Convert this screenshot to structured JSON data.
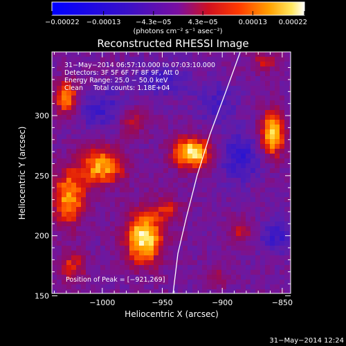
{
  "chart_data": {
    "type": "heatmap",
    "title": "Reconstructed RHESSI Image",
    "xlabel": "Heliocentric X (arcsec)",
    "ylabel": "Heliocentric Y (arcsec)",
    "xlim": [
      -1042,
      -843
    ],
    "ylim": [
      152,
      353
    ],
    "xticks": [
      -1000,
      -950,
      -900,
      -850
    ],
    "xtick_labels": [
      "−1000",
      "−950",
      "−900",
      "−850"
    ],
    "yticks": [
      150,
      200,
      250,
      300
    ],
    "ytick_labels": [
      "150",
      "200",
      "250",
      "300"
    ],
    "colorbar": {
      "range": [
        -0.00022,
        0.00022
      ],
      "ticks": [
        -0.00022,
        -0.00013,
        -4.3e-05,
        4.3e-05,
        0.00013,
        0.00022
      ],
      "tick_labels": [
        "−0.00022",
        "−0.00013",
        "−4.3e−05",
        "4.3e−05",
        "0.00013",
        "0.00022"
      ],
      "label": "(photons cm⁻² s⁻¹ asec⁻²)"
    },
    "info_lines": [
      "31−May−2014 06:57:10.000 to 07:03:10.000",
      "Detectors: 3F 5F 6F 7F 8F 9F, Att 0",
      "Energy Range: 25.0 − 50.0 keV",
      "Clean     Total counts: 1.18E+04"
    ],
    "peak_text": "Position of Peak = [−921,269]",
    "peak": [
      -921,
      269
    ],
    "sources": [
      {
        "x": -965,
        "y": 198,
        "sx": 11,
        "sy": 15,
        "amp": 1.0
      },
      {
        "x": -925,
        "y": 269,
        "sx": 11,
        "sy": 9,
        "amp": 1.0
      },
      {
        "x": -1000,
        "y": 258,
        "sx": 13,
        "sy": 11,
        "amp": 0.8
      },
      {
        "x": -1028,
        "y": 232,
        "sx": 10,
        "sy": 16,
        "amp": 0.75
      },
      {
        "x": -1030,
        "y": 315,
        "sx": 7,
        "sy": 10,
        "amp": 0.7
      },
      {
        "x": -858,
        "y": 285,
        "sx": 7,
        "sy": 13,
        "amp": 0.95
      },
      {
        "x": -1025,
        "y": 175,
        "sx": 8,
        "sy": 9,
        "amp": 0.45
      },
      {
        "x": -885,
        "y": 205,
        "sx": 7,
        "sy": 6,
        "amp": 0.4
      },
      {
        "x": -945,
        "y": 222,
        "sx": 8,
        "sy": 7,
        "amp": 0.4
      },
      {
        "x": -975,
        "y": 295,
        "sx": 9,
        "sy": 8,
        "amp": 0.35
      },
      {
        "x": -905,
        "y": 165,
        "sx": 8,
        "sy": 6,
        "amp": 0.3
      },
      {
        "x": -865,
        "y": 345,
        "sx": 8,
        "sy": 6,
        "amp": 0.35
      }
    ],
    "sinks": [
      {
        "x": -885,
        "y": 265,
        "sx": 12,
        "sy": 14,
        "amp": 0.45
      },
      {
        "x": -855,
        "y": 200,
        "sx": 9,
        "sy": 10,
        "amp": 0.4
      },
      {
        "x": -1000,
        "y": 305,
        "sx": 14,
        "sy": 12,
        "amp": 0.35
      },
      {
        "x": -950,
        "y": 330,
        "sx": 16,
        "sy": 10,
        "amp": 0.3
      },
      {
        "x": -905,
        "y": 310,
        "sx": 12,
        "sy": 12,
        "amp": 0.3
      }
    ],
    "limb": [
      [
        -885,
        353
      ],
      [
        -897,
        320
      ],
      [
        -910,
        285
      ],
      [
        -921,
        250
      ],
      [
        -930,
        215
      ],
      [
        -937,
        185
      ],
      [
        -941,
        152
      ]
    ]
  },
  "timestamp": "31−May−2014 12:24"
}
